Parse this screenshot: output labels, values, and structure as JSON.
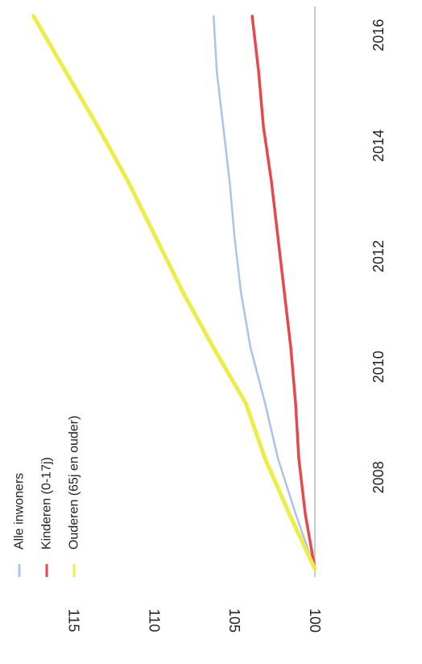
{
  "chart_data": {
    "type": "line",
    "title": "",
    "xlabel": "",
    "ylabel": "",
    "orientation": "rotated 90 degrees clockwise",
    "x": [
      2007,
      2008,
      2009,
      2010,
      2011,
      2012,
      2013,
      2014,
      2015,
      2016,
      2017
    ],
    "xlim": [
      2007,
      2017
    ],
    "ylim": [
      100,
      115
    ],
    "x_ticks": [
      "2008",
      "2010",
      "2012",
      "2014",
      "2016"
    ],
    "y_ticks": [
      "100",
      "105",
      "110",
      "115"
    ],
    "grid": false,
    "legend_position": "top-left",
    "series": [
      {
        "name": "Alle inwoners",
        "color": "#a9c4e8",
        "values": [
          100,
          101.2,
          102.3,
          103.1,
          104.0,
          104.6,
          105.0,
          105.3,
          105.7,
          106.1,
          106.3
        ]
      },
      {
        "name": "Kinderen (0-17j)",
        "color": "#e8474e",
        "values": [
          100,
          100.6,
          101.0,
          101.2,
          101.5,
          101.9,
          102.3,
          102.7,
          103.2,
          103.5,
          103.9
        ]
      },
      {
        "name": "Ouderen (65j en ouder)",
        "color": "#eded4a",
        "values": [
          100,
          101.6,
          103.1,
          104.3,
          106.3,
          108.2,
          109.9,
          111.6,
          113.5,
          115.5,
          117.5
        ]
      }
    ]
  }
}
